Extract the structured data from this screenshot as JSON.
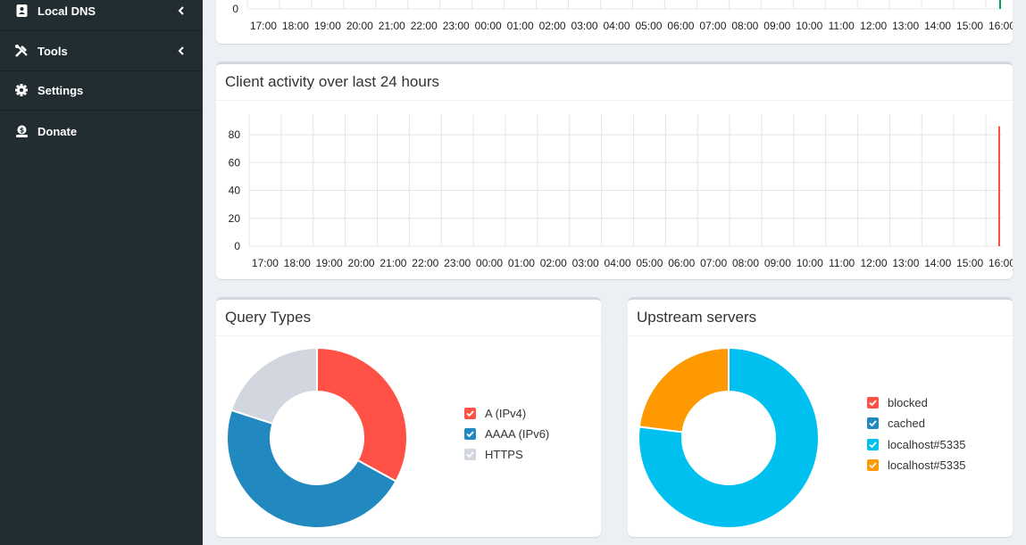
{
  "sidebar": {
    "items": [
      {
        "label": "Local DNS",
        "icon": "address-book-icon",
        "has_chevron": true
      },
      {
        "label": "Tools",
        "icon": "tools-icon",
        "has_chevron": true
      },
      {
        "label": "Settings",
        "icon": "gear-icon",
        "has_chevron": false
      },
      {
        "label": "Donate",
        "icon": "donate-icon",
        "has_chevron": false
      }
    ]
  },
  "top_chart": {
    "y_tick": "0",
    "x_ticks": [
      "17:00",
      "18:00",
      "19:00",
      "20:00",
      "21:00",
      "22:00",
      "23:00",
      "00:00",
      "01:00",
      "02:00",
      "03:00",
      "04:00",
      "05:00",
      "06:00",
      "07:00",
      "08:00",
      "09:00",
      "10:00",
      "11:00",
      "12:00",
      "13:00",
      "14:00",
      "15:00",
      "16:00"
    ]
  },
  "client_activity": {
    "title": "Client activity over last 24 hours"
  },
  "query_types": {
    "title": "Query Types",
    "legend": [
      {
        "label": "A (IPv4)",
        "color": "#ff5145"
      },
      {
        "label": "AAAA (IPv6)",
        "color": "#2189c0"
      },
      {
        "label": "HTTPS",
        "color": "#d2d6de"
      }
    ]
  },
  "upstream_servers": {
    "title": "Upstream servers",
    "legend": [
      {
        "label": "blocked",
        "color": "#ff5145"
      },
      {
        "label": "cached",
        "color": "#2189c0"
      },
      {
        "label": "localhost#5335",
        "color": "#00c0ef"
      },
      {
        "label": "localhost#5335",
        "color": "#ff9900"
      }
    ]
  },
  "chart_data": [
    {
      "type": "bar",
      "title": "",
      "xlabel": "",
      "ylabel": "",
      "categories": [
        "17:00",
        "18:00",
        "19:00",
        "20:00",
        "21:00",
        "22:00",
        "23:00",
        "00:00",
        "01:00",
        "02:00",
        "03:00",
        "04:00",
        "05:00",
        "06:00",
        "07:00",
        "08:00",
        "09:00",
        "10:00",
        "11:00",
        "12:00",
        "13:00",
        "14:00",
        "15:00",
        "16:00"
      ],
      "y_ticks": [
        "0"
      ],
      "grid": true
    },
    {
      "type": "bar",
      "title": "Client activity over last 24 hours",
      "xlabel": "",
      "ylabel": "",
      "categories": [
        "17:00",
        "18:00",
        "19:00",
        "20:00",
        "21:00",
        "22:00",
        "23:00",
        "00:00",
        "01:00",
        "02:00",
        "03:00",
        "04:00",
        "05:00",
        "06:00",
        "07:00",
        "08:00",
        "09:00",
        "10:00",
        "11:00",
        "12:00",
        "13:00",
        "14:00",
        "15:00",
        "16:00"
      ],
      "y_ticks": [
        "0",
        "20",
        "40",
        "60",
        "80"
      ],
      "ylim": [
        0,
        90
      ],
      "series": [
        {
          "color": "#ff5145",
          "last_value": 86
        }
      ],
      "grid": true
    },
    {
      "type": "pie",
      "title": "Query Types",
      "labels": [
        "A (IPv4)",
        "AAAA (IPv6)",
        "HTTPS"
      ],
      "values": [
        33,
        47,
        20
      ],
      "colors": [
        "#ff5145",
        "#2189c0",
        "#d2d6de"
      ],
      "donut": true
    },
    {
      "type": "pie",
      "title": "Upstream servers",
      "labels": [
        "blocked",
        "cached",
        "localhost#5335",
        "localhost#5335"
      ],
      "values": [
        0,
        0,
        77,
        23
      ],
      "colors": [
        "#ff5145",
        "#2189c0",
        "#00c0ef",
        "#ff9900"
      ],
      "donut": true
    }
  ]
}
